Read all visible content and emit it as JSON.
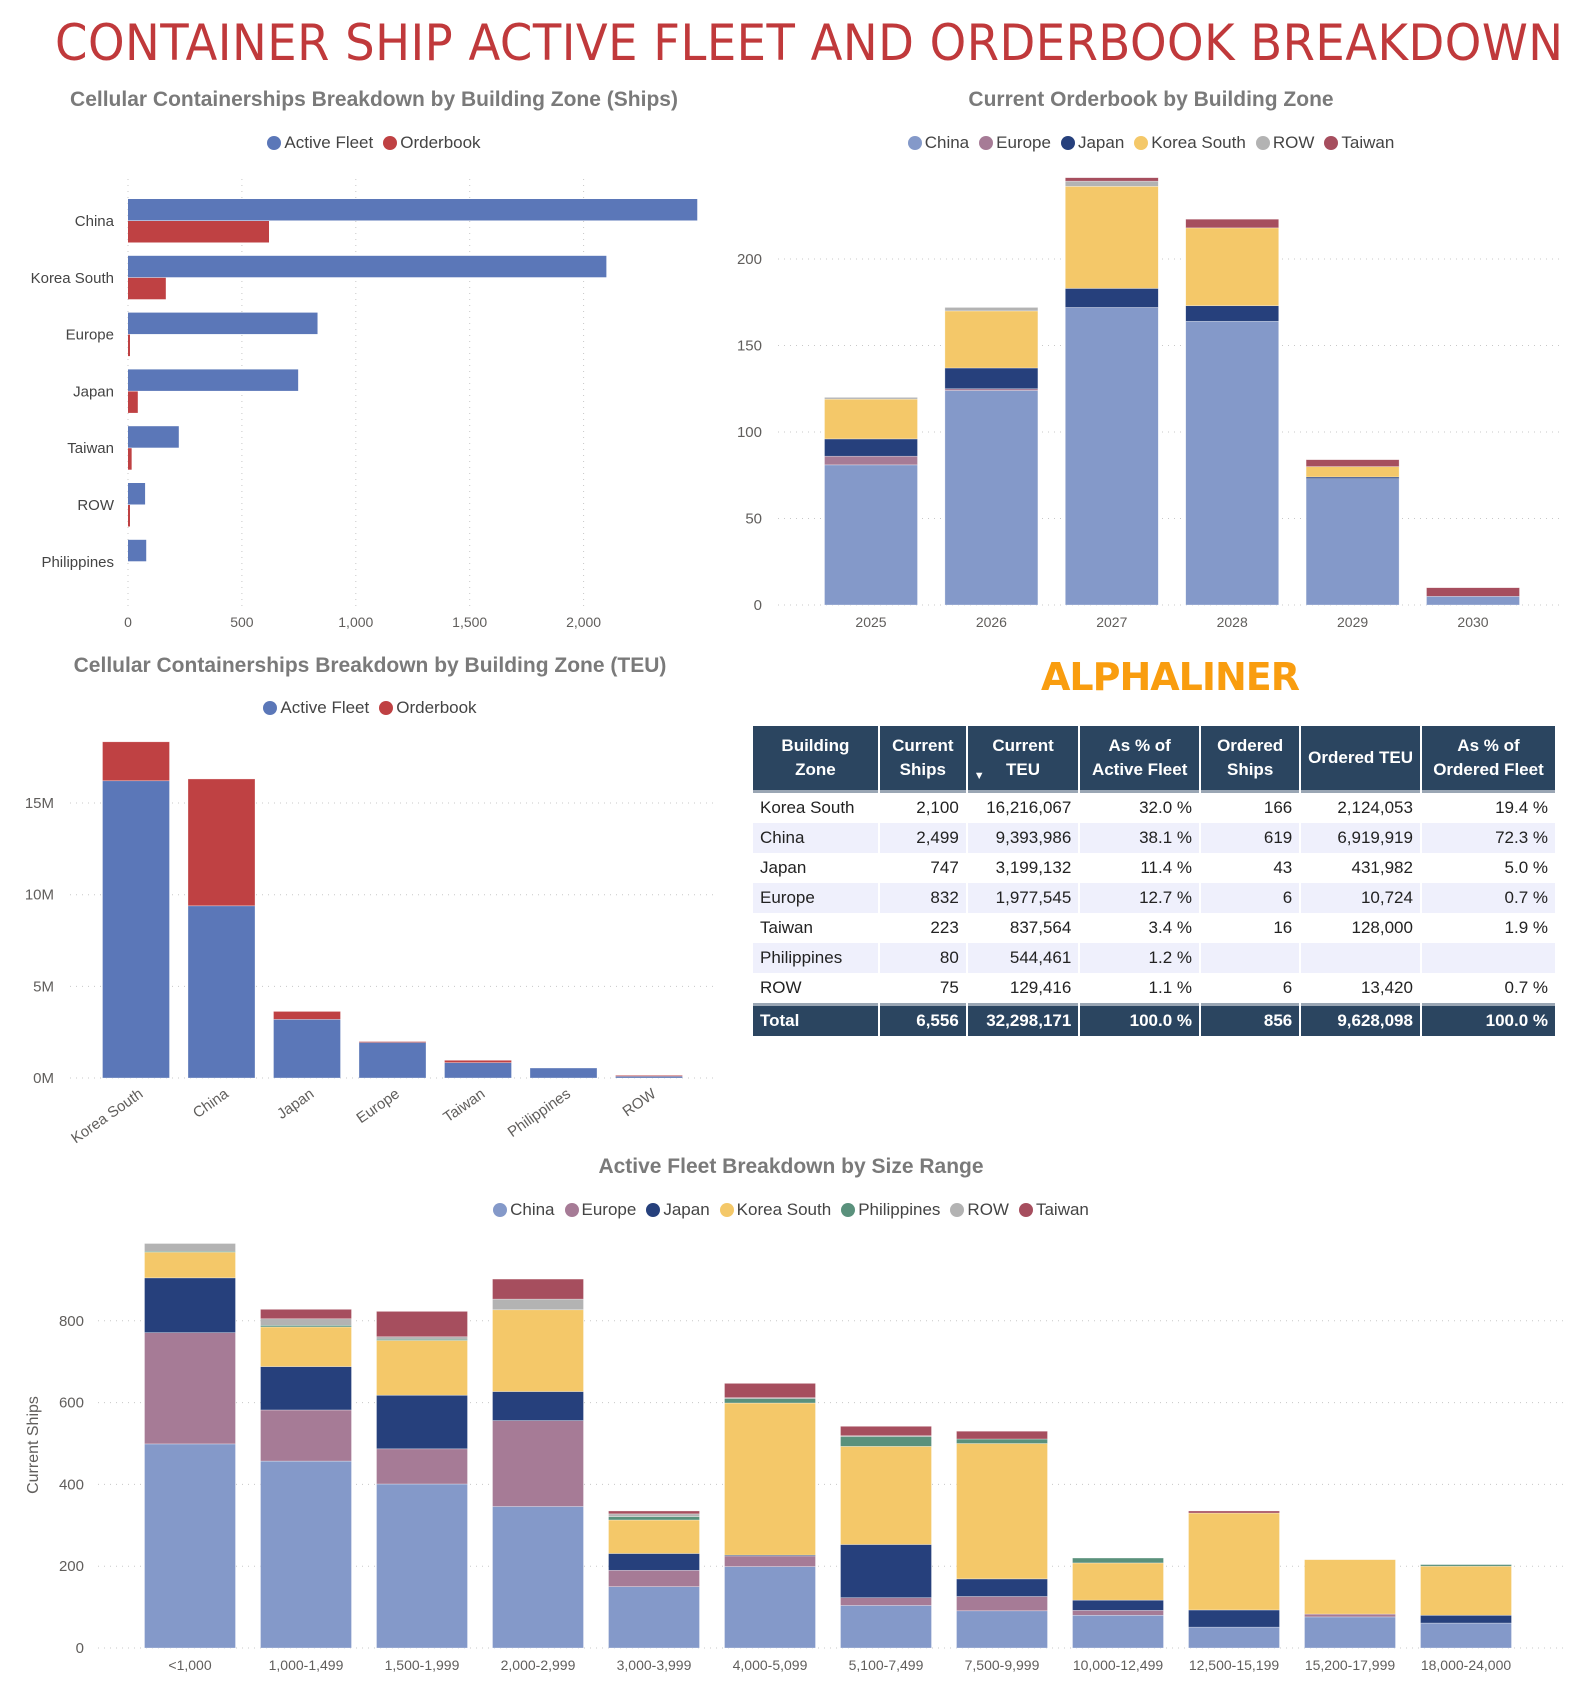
{
  "title": "CONTAINER SHIP ACTIVE FLEET AND ORDERBOOK BREAKDOWN",
  "brand": "ALPHALINER",
  "colors": {
    "title": "#C0393B",
    "active_fleet": "#5B77B8",
    "orderbook": "#BF4143",
    "China": "#8499C9",
    "Europe": "#A67B96",
    "Japan": "#26407C",
    "Korea South": "#F4C869",
    "Philippines": "#5A917C",
    "ROW": "#B3B3B3",
    "Taiwan": "#A64E5E",
    "table_header": "#2B4560",
    "brand": "#F99D0F"
  },
  "chart_data": [
    {
      "id": "ships",
      "type": "bar",
      "orientation": "horizontal",
      "title": "Cellular Containerships Breakdown by Building Zone (Ships)",
      "categories": [
        "China",
        "Korea South",
        "Europe",
        "Japan",
        "Taiwan",
        "ROW",
        "Philippines"
      ],
      "series": [
        {
          "name": "Active Fleet",
          "values": [
            2499,
            2100,
            832,
            747,
            223,
            75,
            80
          ]
        },
        {
          "name": "Orderbook",
          "values": [
            619,
            166,
            6,
            43,
            16,
            6,
            0
          ]
        }
      ],
      "xticks": [
        "0",
        "500",
        "1,000",
        "1,500",
        "2,000"
      ],
      "xtick_values": [
        0,
        500,
        1000,
        1500,
        2000
      ],
      "grid": true,
      "legend": "top-center"
    },
    {
      "id": "orderbook",
      "type": "bar",
      "stacked": true,
      "title": "Current Orderbook by Building Zone",
      "categories": [
        "2025",
        "2026",
        "2027",
        "2028",
        "2029",
        "2030"
      ],
      "series": [
        {
          "name": "China",
          "values": [
            81,
            124,
            172,
            164,
            73,
            5
          ]
        },
        {
          "name": "Europe",
          "values": [
            5,
            1,
            0,
            0,
            0,
            0
          ]
        },
        {
          "name": "Japan",
          "values": [
            10,
            12,
            11,
            9,
            1,
            0
          ]
        },
        {
          "name": "Korea South",
          "values": [
            23,
            33,
            59,
            45,
            6,
            0
          ]
        },
        {
          "name": "ROW",
          "values": [
            1,
            2,
            3,
            0,
            0,
            0
          ]
        },
        {
          "name": "Taiwan",
          "values": [
            0,
            0,
            2,
            5,
            4,
            5
          ]
        }
      ],
      "yticks": [
        "0",
        "50",
        "100",
        "150",
        "200"
      ],
      "ytick_values": [
        0,
        50,
        100,
        150,
        200
      ],
      "grid": true,
      "legend": "top-center"
    },
    {
      "id": "teu",
      "type": "bar",
      "stacked": true,
      "title": "Cellular Containerships Breakdown by Building Zone (TEU)",
      "categories": [
        "Korea South",
        "China",
        "Japan",
        "Europe",
        "Taiwan",
        "Philippines",
        "ROW"
      ],
      "series": [
        {
          "name": "Active Fleet",
          "values": [
            16216067,
            9393986,
            3199132,
            1977545,
            837564,
            544461,
            129416
          ]
        },
        {
          "name": "Orderbook",
          "values": [
            2124053,
            6919919,
            431982,
            10724,
            128000,
            0,
            13420
          ]
        }
      ],
      "yticks": [
        "0M",
        "5M",
        "10M",
        "15M"
      ],
      "ytick_values": [
        0,
        5000000,
        10000000,
        15000000
      ],
      "grid": true,
      "legend": "top-center"
    },
    {
      "id": "size",
      "type": "bar",
      "stacked": true,
      "title": "Active Fleet Breakdown by Size Range",
      "ylabel": "Current Ships",
      "categories": [
        "<1,000",
        "1,000-1,499",
        "1,500-1,999",
        "2,000-2,999",
        "3,000-3,999",
        "4,000-5,099",
        "5,100-7,499",
        "7,500-9,999",
        "10,000-12,499",
        "12,500-15,199",
        "15,200-17,999",
        "18,000-24,000"
      ],
      "series": [
        {
          "name": "China",
          "values": [
            499,
            457,
            401,
            346,
            150,
            199,
            104,
            91,
            80,
            51,
            76,
            61
          ]
        },
        {
          "name": "Europe",
          "values": [
            272,
            125,
            86,
            210,
            40,
            27,
            19,
            35,
            12,
            0,
            7,
            0
          ]
        },
        {
          "name": "Japan",
          "values": [
            134,
            106,
            131,
            71,
            41,
            1,
            130,
            43,
            25,
            42,
            0,
            19
          ]
        },
        {
          "name": "Korea South",
          "values": [
            64,
            97,
            134,
            200,
            82,
            372,
            240,
            331,
            91,
            237,
            133,
            120
          ]
        },
        {
          "name": "Philippines",
          "values": [
            1,
            4,
            3,
            0,
            8,
            12,
            25,
            11,
            12,
            0,
            0,
            4
          ]
        },
        {
          "name": "ROW",
          "values": [
            19,
            16,
            6,
            26,
            7,
            1,
            1,
            0,
            0,
            0,
            0,
            0
          ]
        },
        {
          "name": "Taiwan",
          "values": [
            0,
            23,
            62,
            49,
            7,
            35,
            23,
            19,
            0,
            5,
            0,
            0
          ]
        }
      ],
      "yticks": [
        "0",
        "200",
        "400",
        "600",
        "800"
      ],
      "ytick_values": [
        0,
        200,
        400,
        600,
        800
      ],
      "grid": true,
      "legend": "top-center"
    }
  ],
  "table": {
    "headers": [
      "Building Zone",
      "Current Ships",
      "Current TEU",
      "As % of Active Fleet",
      "Ordered Ships",
      "Ordered TEU",
      "As % of Ordered Fleet"
    ],
    "sorted_column_icon": "sort-descending-icon",
    "rows": [
      [
        "Korea South",
        "2,100",
        "16,216,067",
        "32.0 %",
        "166",
        "2,124,053",
        "19.4 %"
      ],
      [
        "China",
        "2,499",
        "9,393,986",
        "38.1 %",
        "619",
        "6,919,919",
        "72.3 %"
      ],
      [
        "Japan",
        "747",
        "3,199,132",
        "11.4 %",
        "43",
        "431,982",
        "5.0 %"
      ],
      [
        "Europe",
        "832",
        "1,977,545",
        "12.7 %",
        "6",
        "10,724",
        "0.7 %"
      ],
      [
        "Taiwan",
        "223",
        "837,564",
        "3.4 %",
        "16",
        "128,000",
        "1.9 %"
      ],
      [
        "Philippines",
        "80",
        "544,461",
        "1.2 %",
        "",
        "",
        ""
      ],
      [
        "ROW",
        "75",
        "129,416",
        "1.1 %",
        "6",
        "13,420",
        "0.7 %"
      ]
    ],
    "total": [
      "Total",
      "6,556",
      "32,298,171",
      "100.0 %",
      "856",
      "9,628,098",
      "100.0 %"
    ]
  }
}
